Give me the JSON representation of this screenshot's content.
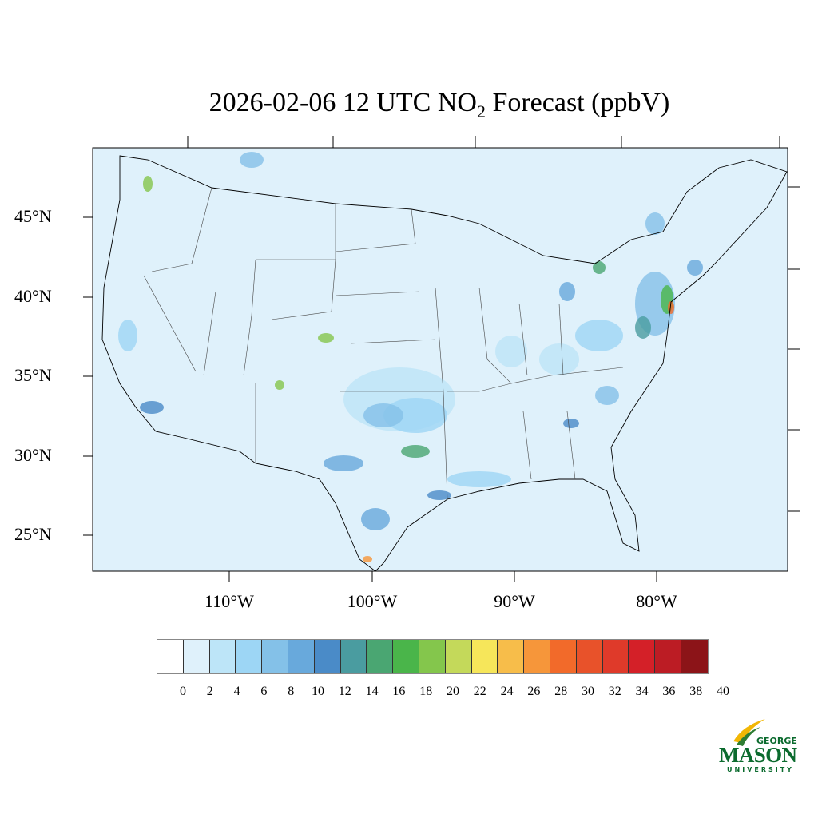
{
  "title": {
    "prefix": "2026-02-06 12 UTC NO",
    "subscript": "2",
    "suffix": " Forecast (ppbV)"
  },
  "lat_labels": [
    "45°N",
    "40°N",
    "35°N",
    "30°N",
    "25°N"
  ],
  "lon_labels": [
    "110°W",
    "100°W",
    "90°W",
    "80°W"
  ],
  "colorbar": {
    "labels": [
      "0",
      "2",
      "4",
      "6",
      "8",
      "10",
      "12",
      "14",
      "16",
      "18",
      "20",
      "22",
      "24",
      "26",
      "28",
      "30",
      "32",
      "34",
      "36",
      "38",
      "40"
    ],
    "colors": [
      "#ffffff",
      "#dff1fb",
      "#bde5f8",
      "#9dd6f5",
      "#84c1e8",
      "#68a9dc",
      "#4a8bc8",
      "#4a9ca0",
      "#4aa672",
      "#4ab54a",
      "#84c64c",
      "#c4d95a",
      "#f6e65a",
      "#f7bd4a",
      "#f6963a",
      "#f26a2a",
      "#e8522a",
      "#df3a2a",
      "#d42028",
      "#bc1c24",
      "#a31a20",
      "#8c1418"
    ]
  },
  "map": {
    "background_color": "#dff1fb"
  },
  "logo": {
    "top": "GEORGE",
    "main": "MASON",
    "bottom": "UNIVERSITY"
  }
}
